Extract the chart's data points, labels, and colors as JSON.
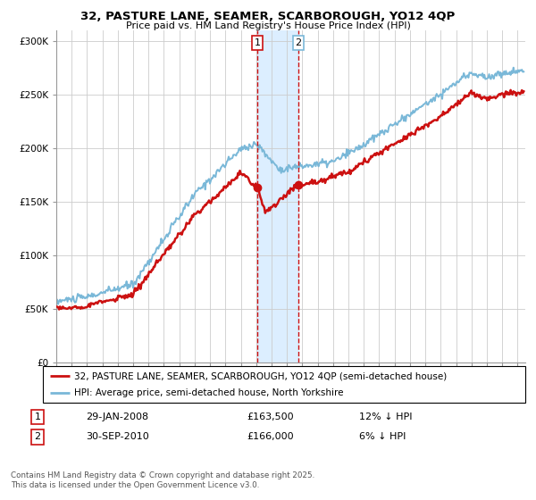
{
  "title": "32, PASTURE LANE, SEAMER, SCARBOROUGH, YO12 4QP",
  "subtitle": "Price paid vs. HM Land Registry's House Price Index (HPI)",
  "ylabel_ticks": [
    "£0",
    "£50K",
    "£100K",
    "£150K",
    "£200K",
    "£250K",
    "£300K"
  ],
  "ylim": [
    0,
    310000
  ],
  "xlim_start": 1995.0,
  "xlim_end": 2025.5,
  "hpi_color": "#7ab8d8",
  "price_color": "#cc1111",
  "vline_color": "#cc1111",
  "shade_color": "#dceeff",
  "sale1_x": 2008.08,
  "sale1_y": 163500,
  "sale2_x": 2010.75,
  "sale2_y": 166000,
  "legend1_text": "32, PASTURE LANE, SEAMER, SCARBOROUGH, YO12 4QP (semi-detached house)",
  "legend2_text": "HPI: Average price, semi-detached house, North Yorkshire",
  "footer": "Contains HM Land Registry data © Crown copyright and database right 2025.\nThis data is licensed under the Open Government Licence v3.0.",
  "bg_color": "#ffffff",
  "plot_bg_color": "#ffffff",
  "grid_color": "#cccccc"
}
